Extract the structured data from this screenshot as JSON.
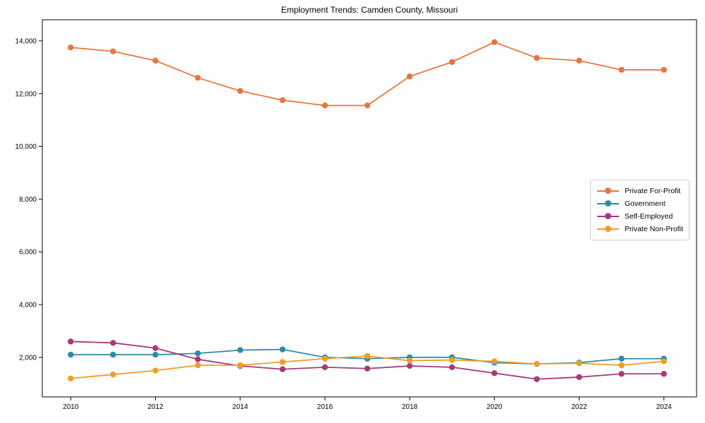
{
  "chart_data": {
    "type": "line",
    "title": "Employment Trends: Camden County, Missouri",
    "xlabel": "",
    "ylabel": "",
    "x": [
      2010,
      2011,
      2012,
      2013,
      2014,
      2015,
      2016,
      2017,
      2018,
      2019,
      2020,
      2021,
      2022,
      2023,
      2024
    ],
    "series": [
      {
        "name": "Private For-Profit",
        "color": "#e8753f",
        "values": [
          13750,
          13600,
          13250,
          12600,
          12100,
          11750,
          11550,
          11550,
          12650,
          13200,
          13950,
          13350,
          13250,
          12900,
          12900
        ]
      },
      {
        "name": "Government",
        "color": "#2e8ba6",
        "values": [
          2100,
          2100,
          2100,
          2150,
          2275,
          2300,
          2000,
          1950,
          2000,
          2000,
          1800,
          1750,
          1800,
          1950,
          1950
        ]
      },
      {
        "name": "Self-Employed",
        "color": "#a53a7e",
        "values": [
          2600,
          2550,
          2350,
          1925,
          1675,
          1550,
          1625,
          1575,
          1675,
          1625,
          1400,
          1175,
          1250,
          1375,
          1375
        ]
      },
      {
        "name": "Private Non-Profit",
        "color": "#ef9d26",
        "values": [
          1200,
          1350,
          1500,
          1700,
          1700,
          1825,
          1950,
          2050,
          1875,
          1900,
          1850,
          1750,
          1775,
          1700,
          1850
        ]
      }
    ],
    "x_ticks": [
      2010,
      2012,
      2014,
      2016,
      2018,
      2020,
      2022,
      2024
    ],
    "y_ticks": [
      2000,
      4000,
      6000,
      8000,
      10000,
      12000,
      14000
    ],
    "xlim": [
      2009.33,
      2024.77
    ],
    "ylim": [
      500,
      14800
    ],
    "grid": false,
    "legend_position": "center right",
    "axis_color": "#000000",
    "background_color": "#ffffff",
    "legend_border_color": "#cccccc"
  }
}
